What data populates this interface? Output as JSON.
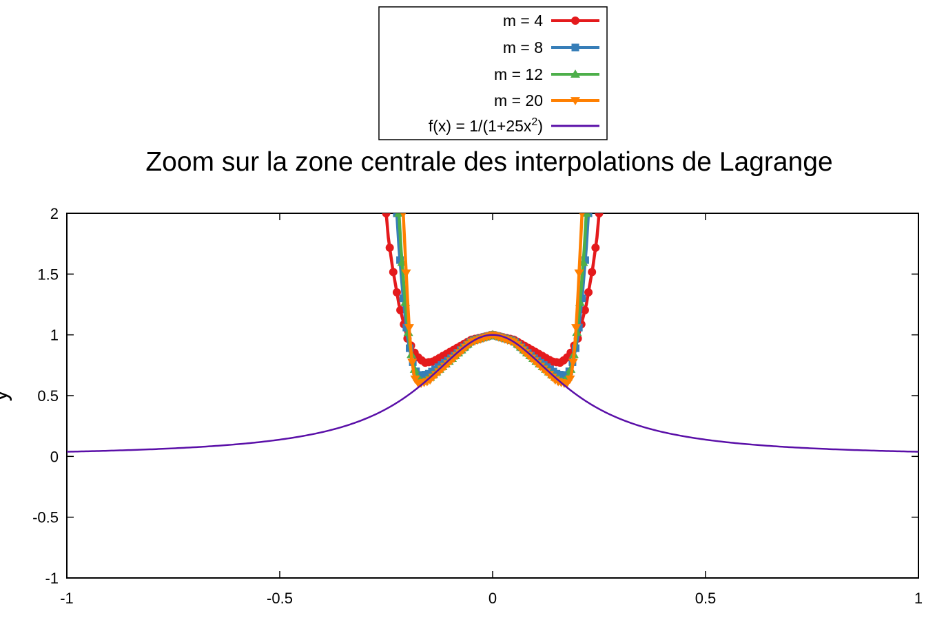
{
  "chart_data": {
    "type": "line",
    "title": "Zoom sur la zone centrale des interpolations de Lagrange",
    "xlabel": "",
    "ylabel": "y",
    "xlim": [
      -1,
      1
    ],
    "ylim": [
      -1,
      2
    ],
    "x_ticks": [
      "-1",
      "-0.5",
      "0",
      "0.5",
      "1"
    ],
    "y_ticks": [
      "2",
      "1.5",
      "1",
      "0.5",
      "0",
      "-0.5",
      "-1"
    ],
    "legend_position": "top-center",
    "function": {
      "label_prefix": "f(x) = 1/(1+25x",
      "label_sup": "2",
      "label_suffix": ")",
      "color": "#5a0fa8",
      "domain": [
        -1,
        1
      ]
    },
    "series": [
      {
        "name": "m = 4",
        "color": "#e41a1c",
        "marker": "circle",
        "x": [
          -0.25,
          -0.245,
          -0.235,
          -0.22,
          -0.2,
          -0.18,
          -0.16,
          -0.14,
          -0.1,
          -0.05,
          0,
          0.05,
          0.1,
          0.14,
          0.16,
          0.18,
          0.2,
          0.22,
          0.235,
          0.245,
          0.25
        ],
        "y": [
          2.0,
          1.8,
          1.55,
          1.25,
          0.97,
          0.83,
          0.77,
          0.78,
          0.86,
          0.96,
          1.0,
          0.96,
          0.86,
          0.78,
          0.77,
          0.83,
          0.97,
          1.25,
          1.55,
          1.8,
          2.0
        ]
      },
      {
        "name": "m = 8",
        "color": "#377eb8",
        "marker": "square",
        "x": [
          -0.225,
          -0.22,
          -0.21,
          -0.2,
          -0.19,
          -0.18,
          -0.17,
          -0.15,
          -0.1,
          -0.05,
          0,
          0.05,
          0.1,
          0.15,
          0.17,
          0.18,
          0.19,
          0.2,
          0.21,
          0.22,
          0.225
        ],
        "y": [
          2.0,
          1.72,
          1.3,
          0.98,
          0.8,
          0.7,
          0.66,
          0.68,
          0.8,
          0.95,
          1.0,
          0.95,
          0.8,
          0.68,
          0.66,
          0.7,
          0.8,
          0.98,
          1.3,
          1.72,
          2.0
        ]
      },
      {
        "name": "m = 12",
        "color": "#4daf4a",
        "marker": "triangle-up",
        "x": [
          -0.22,
          -0.215,
          -0.205,
          -0.195,
          -0.185,
          -0.175,
          -0.165,
          -0.15,
          -0.1,
          -0.05,
          0,
          0.05,
          0.1,
          0.15,
          0.165,
          0.175,
          0.185,
          0.195,
          0.205,
          0.215,
          0.22
        ],
        "y": [
          2.0,
          1.7,
          1.25,
          0.92,
          0.73,
          0.64,
          0.61,
          0.64,
          0.79,
          0.95,
          1.0,
          0.95,
          0.79,
          0.64,
          0.61,
          0.64,
          0.73,
          0.92,
          1.25,
          1.7,
          2.0
        ]
      },
      {
        "name": "m = 20",
        "color": "#ff7f00",
        "marker": "triangle-down",
        "x": [
          -0.21,
          -0.205,
          -0.2,
          -0.195,
          -0.19,
          -0.185,
          -0.18,
          -0.17,
          -0.15,
          -0.1,
          -0.05,
          0,
          0.05,
          0.1,
          0.15,
          0.17,
          0.18,
          0.185,
          0.19,
          0.195,
          0.2,
          0.205,
          0.21
        ],
        "y": [
          2.0,
          1.65,
          1.3,
          1.0,
          0.8,
          0.68,
          0.61,
          0.6,
          0.62,
          0.78,
          0.94,
          1.0,
          0.94,
          0.78,
          0.62,
          0.6,
          0.61,
          0.68,
          0.8,
          1.0,
          1.3,
          1.65,
          2.0
        ]
      }
    ]
  }
}
